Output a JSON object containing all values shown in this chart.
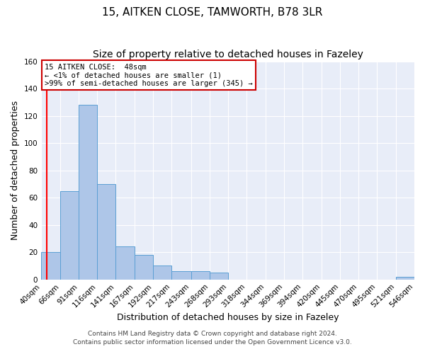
{
  "title": "15, AITKEN CLOSE, TAMWORTH, B78 3LR",
  "subtitle": "Size of property relative to detached houses in Fazeley",
  "xlabel": "Distribution of detached houses by size in Fazeley",
  "ylabel": "Number of detached properties",
  "footer_line1": "Contains HM Land Registry data © Crown copyright and database right 2024.",
  "footer_line2": "Contains public sector information licensed under the Open Government Licence v3.0.",
  "annotation_line1": "15 AITKEN CLOSE:  48sqm",
  "annotation_line2": "← <1% of detached houses are smaller (1)",
  "annotation_line3": ">99% of semi-detached houses are larger (345) →",
  "bin_labels": [
    "40sqm",
    "66sqm",
    "91sqm",
    "116sqm",
    "141sqm",
    "167sqm",
    "192sqm",
    "217sqm",
    "243sqm",
    "268sqm",
    "293sqm",
    "318sqm",
    "344sqm",
    "369sqm",
    "394sqm",
    "420sqm",
    "445sqm",
    "470sqm",
    "495sqm",
    "521sqm",
    "546sqm"
  ],
  "bin_edges": [
    40,
    66,
    91,
    116,
    141,
    167,
    192,
    217,
    243,
    268,
    293,
    318,
    344,
    369,
    394,
    420,
    445,
    470,
    495,
    521,
    546
  ],
  "bar_heights": [
    20,
    65,
    128,
    70,
    24,
    18,
    10,
    6,
    6,
    5,
    0,
    0,
    0,
    0,
    0,
    0,
    0,
    0,
    0,
    2
  ],
  "bar_color": "#aec6e8",
  "bar_edge_color": "#5a9fd4",
  "red_line_x": 48,
  "ylim": [
    0,
    160
  ],
  "yticks": [
    0,
    20,
    40,
    60,
    80,
    100,
    120,
    140,
    160
  ],
  "bg_color": "#ffffff",
  "plot_bg_color": "#e8edf8",
  "grid_color": "#ffffff",
  "annotation_box_color": "#ffffff",
  "annotation_box_edge": "#cc0000",
  "title_fontsize": 11,
  "subtitle_fontsize": 10,
  "label_fontsize": 9,
  "tick_fontsize": 7.5,
  "footer_fontsize": 6.5
}
